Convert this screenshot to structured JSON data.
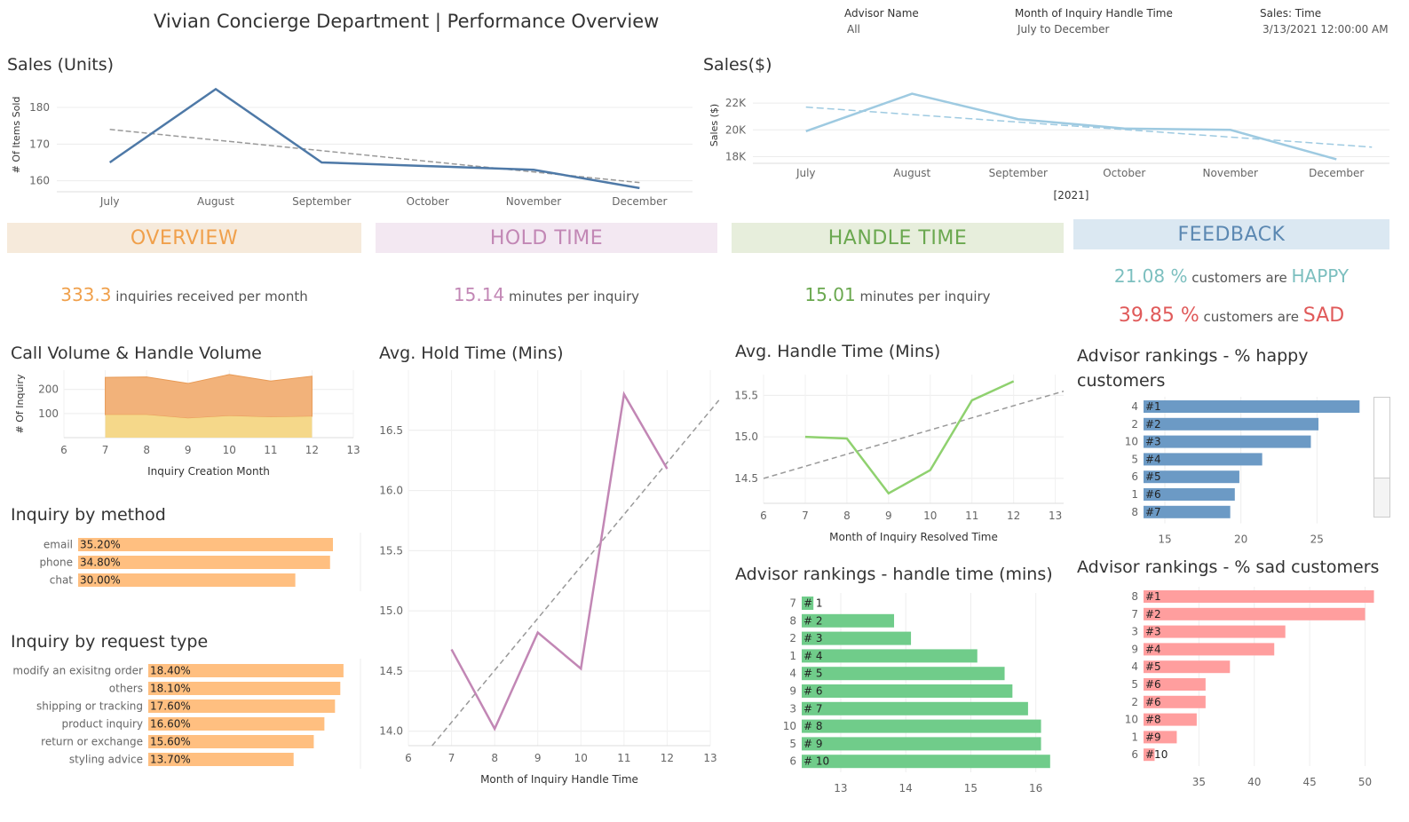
{
  "header": {
    "title": "Vivian Concierge Department | Performance Overview",
    "filters": [
      {
        "label": "Advisor Name",
        "value": "All"
      },
      {
        "label": "Month of Inquiry Handle Time",
        "value": "July to December"
      },
      {
        "label": "Sales: Time",
        "value": "3/13/2021 12:00:00 AM .."
      }
    ]
  },
  "banners": {
    "overview": {
      "label": "OVERVIEW",
      "bg": "#f6eadb",
      "color": "#f0a04b"
    },
    "hold": {
      "label": "HOLD TIME",
      "bg": "#f3e8f2",
      "color": "#c287b5"
    },
    "handle": {
      "label": "HANDLE TIME",
      "bg": "#e7eedc",
      "color": "#6aa84f"
    },
    "feedback": {
      "label": "FEEDBACK",
      "bg": "#dbe8f2",
      "color": "#5b88b2"
    }
  },
  "kpis": {
    "overview": {
      "value": "333.3",
      "text": "inquiries received per month"
    },
    "hold": {
      "value": "15.14",
      "text": "minutes per inquiry"
    },
    "handle": {
      "value": "15.01",
      "text": "minutes per inquiry"
    },
    "happy": {
      "value": "21.08 %",
      "text": "customers are",
      "word": "HAPPY"
    },
    "sad": {
      "value": "39.85 %",
      "text": "customers are",
      "word": "SAD"
    }
  },
  "colors": {
    "orange": "#f0a04b",
    "purple": "#c287b5",
    "green": "#6aa84f",
    "teal": "#7cbfbf",
    "red": "#e05a5a",
    "dark_blue": "#4e79a7",
    "light_blue": "#9ecae1"
  },
  "chart_data": [
    {
      "id": "sales_units",
      "type": "line",
      "title": "Sales (Units)",
      "ylabel": "# Of Items Sold",
      "categories": [
        "July",
        "August",
        "September",
        "October",
        "November",
        "December"
      ],
      "values": [
        165,
        185,
        165,
        164,
        163,
        158
      ],
      "trend": [
        174,
        171,
        168,
        165,
        162,
        159.5
      ],
      "yticks": [
        160,
        170,
        180
      ],
      "ylim": [
        157,
        188
      ],
      "color": "#4e79a7"
    },
    {
      "id": "sales_dollars",
      "type": "line",
      "title": "Sales($)",
      "ylabel": "Sales ($)",
      "xlabel": "[2021]",
      "categories": [
        "July",
        "August",
        "September",
        "October",
        "November",
        "December"
      ],
      "values": [
        19900,
        22700,
        20800,
        20100,
        20000,
        17800
      ],
      "trend": [
        21700,
        21000,
        20500,
        19900,
        19400,
        18900
      ],
      "yticks": [
        18000,
        20000,
        22000
      ],
      "ytick_labels": [
        "18K",
        "20K",
        "22K"
      ],
      "ylim": [
        17500,
        23200
      ],
      "color": "#9ecae1"
    },
    {
      "id": "call_volume",
      "type": "area",
      "title": "Call Volume & Handle Volume",
      "ylabel": "# Of Inquiry",
      "xlabel": "Inquiry Creation Month",
      "x": [
        7,
        8,
        9,
        10,
        11,
        12
      ],
      "series": [
        {
          "values": [
            95,
            95,
            80,
            90,
            85,
            88
          ],
          "color": "#f5d88a"
        },
        {
          "values": [
            250,
            252,
            225,
            262,
            235,
            255
          ],
          "color": "#f2b27a"
        }
      ],
      "xticks": [
        6,
        7,
        8,
        9,
        10,
        11,
        12,
        13
      ],
      "yticks": [
        100,
        200
      ],
      "ylim": [
        0,
        280
      ],
      "xlim": [
        6,
        13
      ]
    },
    {
      "id": "inquiry_method",
      "type": "bar",
      "title": "Inquiry by method",
      "categories": [
        "email",
        "phone",
        "chat"
      ],
      "values": [
        35.2,
        34.8,
        30.0
      ],
      "labels": [
        "35.20%",
        "34.80%",
        "30.00%"
      ],
      "color": "#ffbf80"
    },
    {
      "id": "inquiry_request_type",
      "type": "bar",
      "title": "Inquiry by request type",
      "categories": [
        "modify an exisitng order",
        "others",
        "shipping or tracking",
        "product inquiry",
        "return or exchange",
        "styling advice"
      ],
      "values": [
        18.4,
        18.1,
        17.6,
        16.6,
        15.6,
        13.7
      ],
      "labels": [
        "18.40%",
        "18.10%",
        "17.60%",
        "16.60%",
        "15.60%",
        "13.70%"
      ],
      "color": "#ffbf80"
    },
    {
      "id": "avg_hold_time",
      "type": "line",
      "title": "Avg. Hold Time (Mins)",
      "xlabel": "Month of Inquiry Handle Time",
      "x": [
        7,
        8,
        9,
        10,
        11,
        12
      ],
      "values": [
        14.68,
        14.02,
        14.82,
        14.52,
        16.8,
        16.18
      ],
      "trend_start": [
        6.55,
        13.88
      ],
      "trend_end": [
        13.2,
        16.75
      ],
      "xticks": [
        6,
        7,
        8,
        9,
        10,
        11,
        12,
        13
      ],
      "yticks": [
        14.0,
        14.5,
        15.0,
        15.5,
        16.0,
        16.5
      ],
      "ylim": [
        13.88,
        17.0
      ],
      "xlim": [
        6,
        13
      ],
      "color": "#c287b5"
    },
    {
      "id": "avg_handle_time",
      "type": "line",
      "title": "Avg. Handle Time (Mins)",
      "xlabel": "Month of Inquiry Resolved Time",
      "x": [
        7,
        8,
        9,
        10,
        11,
        12
      ],
      "values": [
        15.0,
        14.98,
        14.32,
        14.6,
        15.44,
        15.67
      ],
      "trend_start": [
        6,
        14.5
      ],
      "trend_end": [
        13.2,
        15.55
      ],
      "xticks": [
        6,
        7,
        8,
        9,
        10,
        11,
        12,
        13
      ],
      "yticks": [
        14.5,
        15.0,
        15.5
      ],
      "ylim": [
        14.2,
        15.75
      ],
      "xlim": [
        6,
        13.2
      ],
      "color": "#8fd16f"
    },
    {
      "id": "rank_handle_time",
      "type": "bar",
      "title": "Advisor rankings - handle time (mins)",
      "categories": [
        "7",
        "8",
        "2",
        "1",
        "4",
        "9",
        "3",
        "10",
        "5",
        "6"
      ],
      "values": [
        12.58,
        13.82,
        14.08,
        15.1,
        15.52,
        15.64,
        15.88,
        16.08,
        16.08,
        16.22
      ],
      "labels": [
        "# 1",
        "# 2",
        "# 3",
        "# 4",
        "# 5",
        "# 6",
        "# 7",
        "# 8",
        "# 9",
        "# 10"
      ],
      "xticks": [
        13,
        14,
        15,
        16
      ],
      "xlim": [
        12.4,
        16.4
      ],
      "color": "#70cc8a"
    },
    {
      "id": "rank_happy",
      "type": "bar",
      "title": "Advisor rankings - % happy customers",
      "categories": [
        "4",
        "2",
        "10",
        "5",
        "6",
        "1",
        "8"
      ],
      "values": [
        27.8,
        25.1,
        24.6,
        21.4,
        19.9,
        19.6,
        19.3
      ],
      "labels": [
        "#1",
        "#2",
        "#3",
        "#4",
        "#5",
        "#6",
        "#7"
      ],
      "xticks": [
        15,
        20,
        25
      ],
      "xlim": [
        13.6,
        28.6
      ],
      "color": "#6c9ac5"
    },
    {
      "id": "rank_sad",
      "type": "bar",
      "title": "Advisor rankings - % sad customers",
      "categories": [
        "8",
        "7",
        "3",
        "9",
        "4",
        "5",
        "2",
        "10",
        "1",
        "6"
      ],
      "values": [
        50.8,
        50.0,
        42.8,
        41.8,
        37.8,
        35.6,
        35.6,
        34.8,
        33.0,
        31.0
      ],
      "labels": [
        "#1",
        "#2",
        "#3",
        "#4",
        "#5",
        "#6",
        "#6",
        "#8",
        "#9",
        "#10"
      ],
      "xticks": [
        35,
        40,
        45,
        50
      ],
      "xlim": [
        30.0,
        51.8
      ],
      "color": "#ff9e9e"
    }
  ]
}
